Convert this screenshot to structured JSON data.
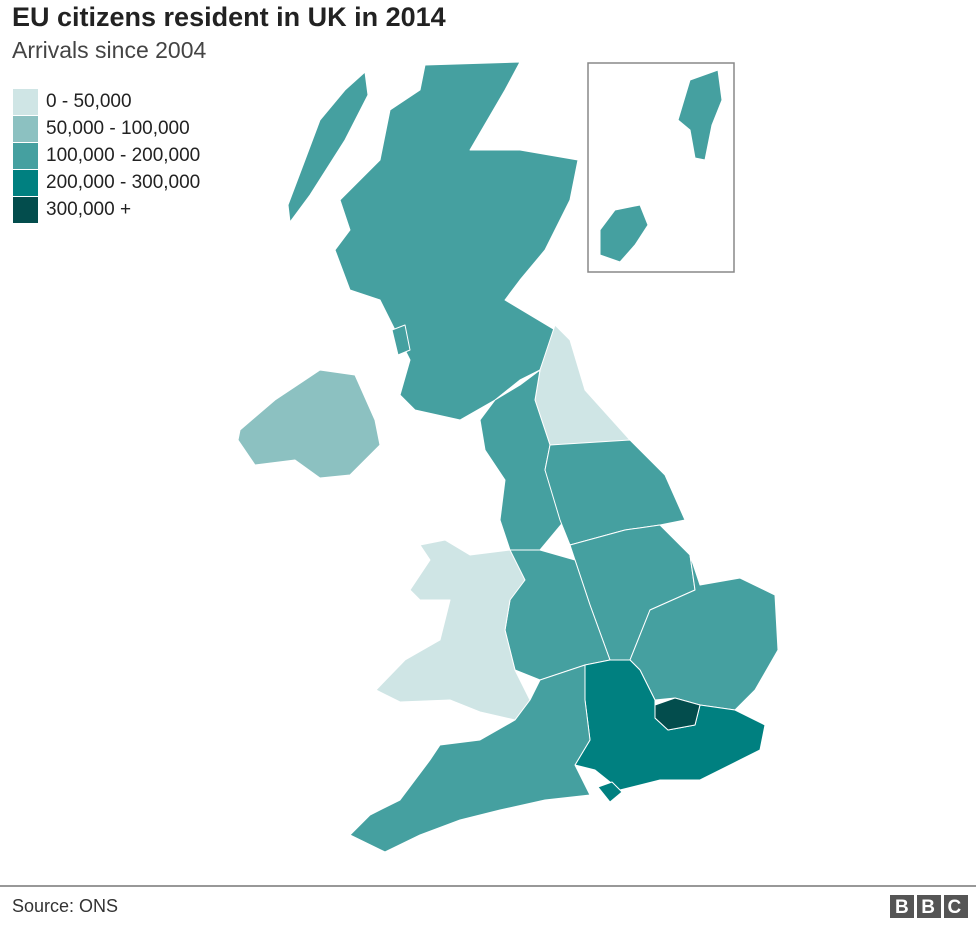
{
  "header": {
    "title": "EU citizens resident in UK in 2014",
    "subtitle": "Arrivals since 2004"
  },
  "legend": {
    "items": [
      {
        "label": "0 - 50,000",
        "color": "#cfe5e5"
      },
      {
        "label": "50,000 - 100,000",
        "color": "#8cc1c1"
      },
      {
        "label": "100,000 - 200,000",
        "color": "#45a0a0"
      },
      {
        "label": "200,000 - 300,000",
        "color": "#008080"
      },
      {
        "label": "300,000 +",
        "color": "#034d4d"
      }
    ]
  },
  "footer": {
    "source": "Source: ONS",
    "logo": "BBC"
  }
}
